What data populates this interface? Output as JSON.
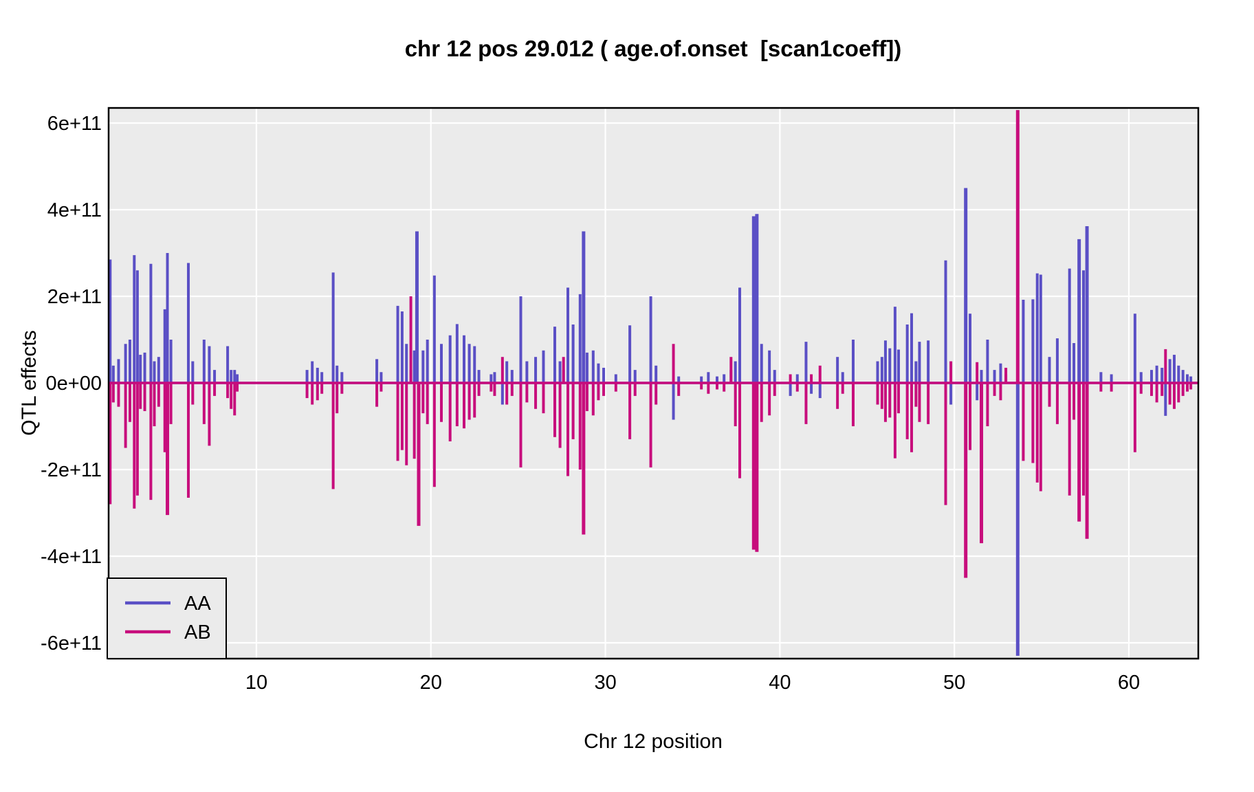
{
  "title": "chr 12 pos 29.012 ( age.of.onset  [scan1coeff])",
  "axes": {
    "x": {
      "label": "Chr 12 position",
      "ticks": [
        10,
        20,
        30,
        40,
        50,
        60
      ],
      "min": 1.53,
      "max": 63.98
    },
    "y": {
      "label": "QTL effects",
      "tick_labels": [
        "6e+11",
        "4e+11",
        "2e+11",
        "0e+00",
        "-2e+11",
        "-4e+11",
        "-6e+11"
      ],
      "tick_values": [
        6,
        4,
        2,
        0,
        -2,
        -4,
        -6
      ],
      "unit": "1e+11",
      "min": -6.35,
      "max": 6.35
    }
  },
  "legend": {
    "entries": [
      {
        "label": "AA",
        "color": "#5A4FC5"
      },
      {
        "label": "AB",
        "color": "#C70D7C"
      }
    ]
  },
  "colors": {
    "panel_background": "#EBEBEB",
    "gridline": "#FFFFFF",
    "panel_border": "#000000",
    "series_aa": "#5A4FC5",
    "series_ab": "#C70D7C",
    "text": "#000000"
  },
  "chart_data": {
    "type": "line",
    "title": "chr 12 pos 29.012 ( age.of.onset  [scan1coeff])",
    "xlabel": "Chr 12 position",
    "ylabel": "QTL effects",
    "x_range": [
      1.53,
      63.98
    ],
    "y_range_e11": [
      -6.35,
      6.35
    ],
    "grid": "major-only",
    "legend_position": "bottom-left-inset",
    "note": "Spike values in units of 1e+11; both series sit at 0 between spikes. aa=AA(blue), ab=AB(magenta).",
    "spikes": [
      [
        1.62,
        2.85,
        -2.8
      ],
      [
        1.8,
        0.4,
        -0.45
      ],
      [
        2.1,
        0.55,
        -0.55
      ],
      [
        2.5,
        0.9,
        -1.5
      ],
      [
        2.75,
        1.0,
        -0.9
      ],
      [
        3.0,
        2.95,
        -2.9
      ],
      [
        3.18,
        2.6,
        -2.6
      ],
      [
        3.35,
        0.65,
        -0.6
      ],
      [
        3.6,
        0.7,
        -0.65
      ],
      [
        3.95,
        2.75,
        -2.7
      ],
      [
        4.15,
        0.5,
        -1.0
      ],
      [
        4.4,
        0.6,
        -0.55
      ],
      [
        4.75,
        1.7,
        -1.6
      ],
      [
        4.9,
        3.0,
        -3.05
      ],
      [
        5.1,
        1.0,
        -0.95
      ],
      [
        6.1,
        2.77,
        -2.65
      ],
      [
        6.35,
        0.5,
        -0.5
      ],
      [
        7.0,
        1.0,
        -0.95
      ],
      [
        7.3,
        0.85,
        -1.45
      ],
      [
        7.6,
        0.3,
        -0.3
      ],
      [
        8.35,
        0.85,
        -0.35
      ],
      [
        8.55,
        0.3,
        -0.6
      ],
      [
        8.75,
        0.3,
        -0.75
      ],
      [
        8.9,
        0.2,
        -0.2
      ],
      [
        12.9,
        0.3,
        -0.35
      ],
      [
        13.2,
        0.5,
        -0.5
      ],
      [
        13.5,
        0.35,
        -0.4
      ],
      [
        13.75,
        0.25,
        -0.25
      ],
      [
        14.4,
        2.55,
        -2.45
      ],
      [
        14.62,
        0.4,
        -0.7
      ],
      [
        14.9,
        0.25,
        -0.25
      ],
      [
        16.9,
        0.55,
        -0.55
      ],
      [
        17.15,
        0.25,
        -0.2
      ],
      [
        18.1,
        1.78,
        -1.8
      ],
      [
        18.35,
        1.65,
        -1.55
      ],
      [
        18.6,
        0.9,
        -1.9
      ],
      [
        18.85,
        0.3,
        2.0
      ],
      [
        19.05,
        0.75,
        -1.75
      ],
      [
        19.2,
        3.5,
        null
      ],
      [
        19.3,
        -1.9,
        -3.3
      ],
      [
        19.55,
        0.75,
        -0.7
      ],
      [
        19.8,
        1.0,
        -0.95
      ],
      [
        20.2,
        2.48,
        -2.4
      ],
      [
        20.6,
        0.9,
        -0.9
      ],
      [
        21.1,
        1.1,
        -1.35
      ],
      [
        21.5,
        1.36,
        -1.0
      ],
      [
        21.9,
        1.1,
        -1.05
      ],
      [
        22.2,
        0.9,
        -0.85
      ],
      [
        22.5,
        0.85,
        -0.8
      ],
      [
        22.75,
        0.3,
        -0.3
      ],
      [
        23.45,
        0.2,
        -0.2
      ],
      [
        23.65,
        0.25,
        -0.3
      ],
      [
        24.1,
        -0.5,
        0.6
      ],
      [
        24.35,
        0.5,
        -0.5
      ],
      [
        24.65,
        0.3,
        -0.3
      ],
      [
        25.15,
        2.0,
        -1.95
      ],
      [
        25.5,
        0.5,
        -0.45
      ],
      [
        26.0,
        0.6,
        -0.6
      ],
      [
        26.45,
        0.75,
        -0.7
      ],
      [
        27.1,
        1.3,
        -1.25
      ],
      [
        27.4,
        0.5,
        -1.5
      ],
      [
        27.6,
        0.3,
        0.6
      ],
      [
        27.85,
        2.2,
        -2.15
      ],
      [
        28.15,
        1.35,
        -1.3
      ],
      [
        28.55,
        2.05,
        -2.0
      ],
      [
        28.75,
        3.5,
        -3.5
      ],
      [
        28.95,
        0.7,
        -0.65
      ],
      [
        29.3,
        0.75,
        -0.75
      ],
      [
        29.6,
        0.45,
        -0.4
      ],
      [
        29.9,
        0.35,
        -0.3
      ],
      [
        30.6,
        0.2,
        -0.2
      ],
      [
        31.4,
        1.33,
        -1.3
      ],
      [
        31.7,
        0.3,
        -0.3
      ],
      [
        32.6,
        2.0,
        -1.95
      ],
      [
        32.9,
        0.4,
        -0.5
      ],
      [
        33.9,
        -0.85,
        0.9
      ],
      [
        34.2,
        0.15,
        -0.3
      ],
      [
        35.5,
        0.15,
        -0.15
      ],
      [
        35.9,
        0.25,
        -0.25
      ],
      [
        36.4,
        0.15,
        -0.15
      ],
      [
        36.8,
        0.2,
        -0.2
      ],
      [
        37.2,
        0.3,
        0.6
      ],
      [
        37.45,
        0.5,
        -1.0
      ],
      [
        37.7,
        2.2,
        -2.2
      ],
      [
        38.5,
        3.85,
        -3.85
      ],
      [
        38.68,
        3.9,
        -3.9
      ],
      [
        38.95,
        0.9,
        -0.9
      ],
      [
        39.4,
        0.75,
        -0.75
      ],
      [
        39.7,
        0.3,
        -0.3
      ],
      [
        40.6,
        -0.3,
        0.2
      ],
      [
        41.0,
        0.2,
        -0.2
      ],
      [
        41.5,
        0.95,
        -0.95
      ],
      [
        41.8,
        -0.25,
        0.2
      ],
      [
        42.3,
        -0.35,
        0.4
      ],
      [
        43.3,
        0.6,
        -0.6
      ],
      [
        43.6,
        0.25,
        -0.25
      ],
      [
        44.2,
        1.0,
        -1.0
      ],
      [
        45.6,
        0.5,
        -0.5
      ],
      [
        45.85,
        0.6,
        -0.6
      ],
      [
        46.05,
        0.98,
        -0.9
      ],
      [
        46.3,
        0.8,
        -0.8
      ],
      [
        46.6,
        1.76,
        -1.74
      ],
      [
        46.8,
        0.77,
        -0.7
      ],
      [
        47.3,
        1.35,
        -1.3
      ],
      [
        47.55,
        1.61,
        -1.6
      ],
      [
        47.8,
        0.5,
        -0.55
      ],
      [
        48.0,
        0.95,
        -0.9
      ],
      [
        48.5,
        0.98,
        -0.95
      ],
      [
        49.5,
        2.83,
        -2.82
      ],
      [
        49.8,
        -0.5,
        0.5
      ],
      [
        50.65,
        4.5,
        -4.5
      ],
      [
        50.9,
        1.6,
        -1.55
      ],
      [
        51.3,
        -0.4,
        0.48
      ],
      [
        51.55,
        0.3,
        -3.7
      ],
      [
        51.9,
        1.0,
        -1.0
      ],
      [
        52.3,
        0.3,
        -0.3
      ],
      [
        52.65,
        0.45,
        -0.4
      ],
      [
        52.95,
        0.2,
        0.35
      ],
      [
        53.63,
        -6.3,
        6.3
      ],
      [
        53.95,
        1.92,
        -1.8
      ],
      [
        54.5,
        1.93,
        -1.85
      ],
      [
        54.75,
        2.53,
        -2.3
      ],
      [
        54.95,
        2.5,
        -2.5
      ],
      [
        55.45,
        0.6,
        -0.55
      ],
      [
        55.9,
        1.03,
        -0.95
      ],
      [
        56.6,
        2.64,
        -2.6
      ],
      [
        56.85,
        0.92,
        -0.85
      ],
      [
        57.15,
        3.32,
        -3.2
      ],
      [
        57.4,
        2.6,
        -2.6
      ],
      [
        57.6,
        3.62,
        -3.6
      ],
      [
        58.4,
        0.25,
        -0.2
      ],
      [
        59.0,
        0.2,
        -0.2
      ],
      [
        60.35,
        1.6,
        -1.6
      ],
      [
        60.7,
        0.25,
        -0.25
      ],
      [
        61.3,
        0.3,
        -0.3
      ],
      [
        61.6,
        0.4,
        -0.45
      ],
      [
        61.9,
        0.35,
        -0.3
      ],
      [
        62.1,
        -0.76,
        0.78
      ],
      [
        62.35,
        0.55,
        -0.5
      ],
      [
        62.6,
        0.65,
        -0.6
      ],
      [
        62.85,
        0.4,
        -0.45
      ],
      [
        63.1,
        0.3,
        -0.3
      ],
      [
        63.35,
        0.2,
        -0.2
      ],
      [
        63.55,
        0.15,
        -0.15
      ]
    ],
    "series": [
      {
        "name": "AA",
        "color": "#5A4FC5"
      },
      {
        "name": "AB",
        "color": "#C70D7C"
      }
    ]
  }
}
